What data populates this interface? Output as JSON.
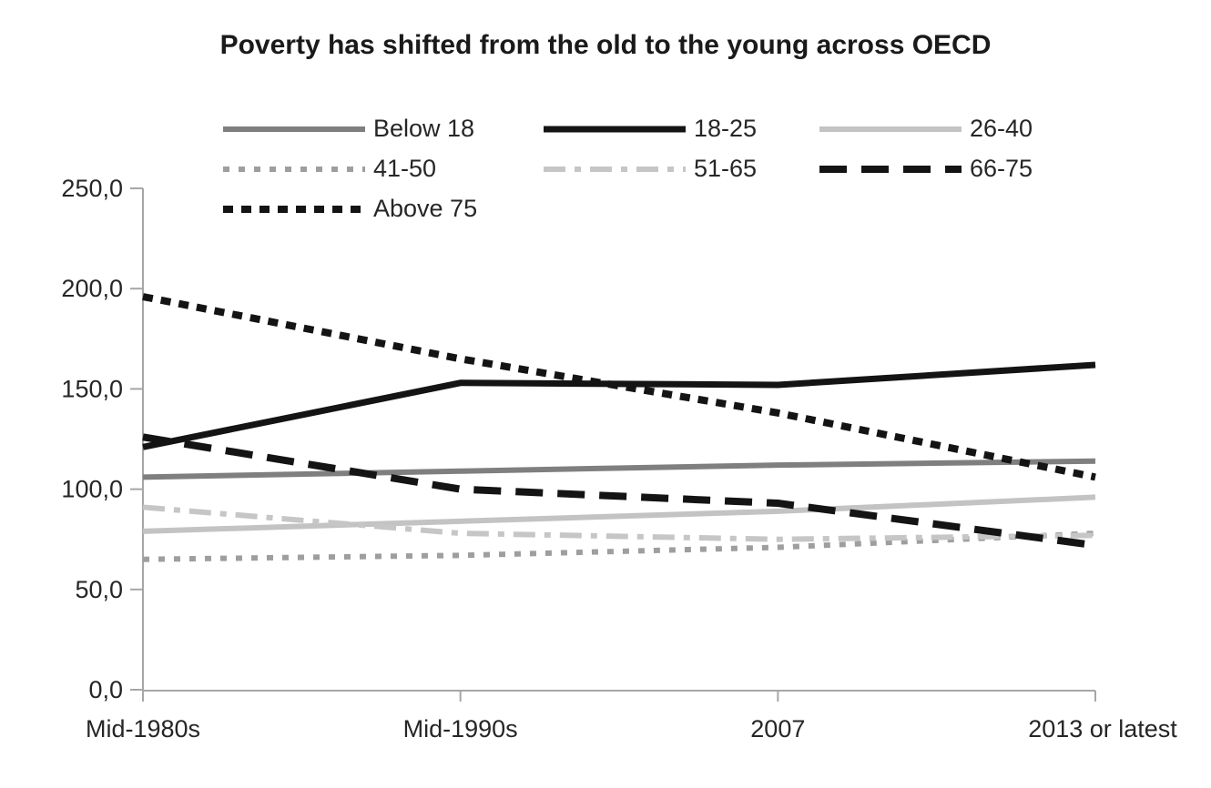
{
  "chart_data": {
    "type": "line",
    "title": "Poverty has shifted from the old to the young across OECD",
    "categories": [
      "Mid-1980s",
      "Mid-1990s",
      "2007",
      "2013 or latest"
    ],
    "xlabel": "",
    "ylabel": "",
    "ylim": [
      0,
      250
    ],
    "y_ticks": [
      0,
      50,
      100,
      150,
      200,
      250
    ],
    "y_tick_labels": [
      "0,0",
      "50,0",
      "100,0",
      "150,0",
      "200,0",
      "250,0"
    ],
    "grid": "off",
    "legend_position": "top",
    "axis_color": "#a6a6a6",
    "text_color": "#262626",
    "series": [
      {
        "name": "Below 18",
        "color": "#7f7f7f",
        "line_style": "solid",
        "values": [
          106,
          109,
          112,
          114
        ]
      },
      {
        "name": "18-25",
        "color": "#141414",
        "line_style": "solid",
        "values": [
          121,
          153,
          152,
          162
        ]
      },
      {
        "name": "26-40",
        "color": "#c3c3c3",
        "line_style": "solid",
        "values": [
          79,
          84,
          89,
          96
        ]
      },
      {
        "name": "41-50",
        "color": "#9e9e9e",
        "line_style": "dot",
        "values": [
          65,
          67,
          71,
          78
        ]
      },
      {
        "name": "51-65",
        "color": "#c6c6c6",
        "line_style": "dash-dot",
        "values": [
          91,
          78,
          75,
          77
        ]
      },
      {
        "name": "66-75",
        "color": "#141414",
        "line_style": "long-dash",
        "values": [
          126,
          100,
          93,
          72
        ]
      },
      {
        "name": "Above 75",
        "color": "#141414",
        "line_style": "dot",
        "values": [
          196,
          165,
          138,
          106
        ]
      }
    ]
  }
}
